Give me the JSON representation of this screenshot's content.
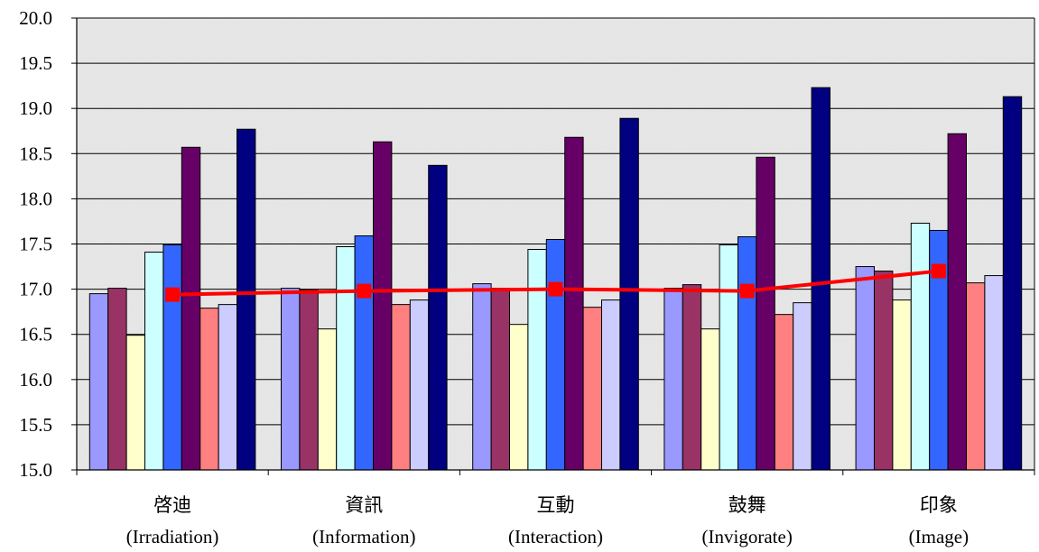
{
  "chart_data": {
    "type": "bar",
    "title": "",
    "xlabel": "",
    "ylabel": "",
    "ylim": [
      15.0,
      20.0
    ],
    "yticks": [
      "15.0",
      "15.5",
      "16.0",
      "16.5",
      "17.0",
      "17.5",
      "18.0",
      "18.5",
      "19.0",
      "19.5",
      "20.0"
    ],
    "grid": true,
    "legend": "none",
    "categories": [
      {
        "zh": "啓迪",
        "en": "(Irradiation)"
      },
      {
        "zh": "資訊",
        "en": "(Information)"
      },
      {
        "zh": "互動",
        "en": "(Interaction)"
      },
      {
        "zh": "鼓舞",
        "en": "(Invigorate)"
      },
      {
        "zh": "印象",
        "en": "(Image)"
      }
    ],
    "series": [
      {
        "color": "#9999ff",
        "values": [
          16.95,
          17.01,
          17.06,
          17.01,
          17.25
        ]
      },
      {
        "color": "#993366",
        "values": [
          17.01,
          16.99,
          17.01,
          17.05,
          17.2
        ]
      },
      {
        "color": "#ffffcc",
        "values": [
          16.49,
          16.56,
          16.61,
          16.56,
          16.88
        ]
      },
      {
        "color": "#ccffff",
        "values": [
          17.41,
          17.47,
          17.44,
          17.49,
          17.73
        ]
      },
      {
        "color": "#3366ff",
        "values": [
          17.49,
          17.59,
          17.55,
          17.58,
          17.65
        ]
      },
      {
        "color": "#660066",
        "values": [
          18.57,
          18.63,
          18.68,
          18.46,
          18.72
        ]
      },
      {
        "color": "#ff8080",
        "values": [
          16.79,
          16.83,
          16.8,
          16.72,
          17.07
        ]
      },
      {
        "color": "#ccccff",
        "values": [
          16.83,
          16.88,
          16.88,
          16.85,
          17.15
        ]
      },
      {
        "color": "#000080",
        "values": [
          18.77,
          18.37,
          18.89,
          19.23,
          19.13
        ]
      }
    ],
    "line_series": {
      "color": "#ff0000",
      "values": [
        16.94,
        16.98,
        17.0,
        16.98,
        17.2
      ]
    }
  }
}
